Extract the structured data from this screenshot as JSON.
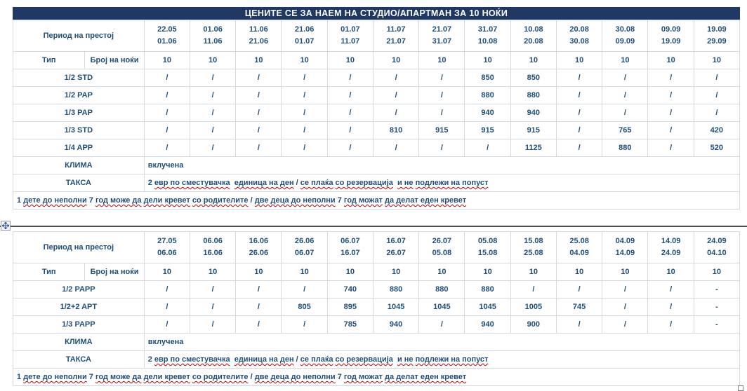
{
  "page": {
    "title": "ЦЕНИТЕ СЕ ЗА НАЕМ НА СТУДИО/АПАРТМАН ЗА 10 НОЌИ"
  },
  "labels": {
    "period": "Период на престој",
    "type": "Тип",
    "nights": "Број на ноќи",
    "klima": "КЛИМА",
    "klima_value": "вклучена",
    "taksa": "ТАКСА"
  },
  "taksa_segments": [
    {
      "t": "2 ",
      "m": false
    },
    {
      "t": "евр по сместувачка",
      "m": true
    },
    {
      "t": "  ",
      "m": false
    },
    {
      "t": "единица на ден",
      "m": true
    },
    {
      "t": " / ",
      "m": false
    },
    {
      "t": "се плаќа",
      "m": true
    },
    {
      "t": " ",
      "m": false
    },
    {
      "t": "со резервација",
      "m": true
    },
    {
      "t": "  ",
      "m": false
    },
    {
      "t": "и не",
      "m": true
    },
    {
      "t": " ",
      "m": false
    },
    {
      "t": "подлежи на попуст",
      "m": true
    }
  ],
  "footer_segments": [
    {
      "t": "1 ",
      "m": false
    },
    {
      "t": "дете до неполни",
      "m": true
    },
    {
      "t": " 7 ",
      "m": false
    },
    {
      "t": "год може да",
      "m": true
    },
    {
      "t": " ",
      "m": false
    },
    {
      "t": "дели кревет",
      "m": true
    },
    {
      "t": " ",
      "m": false
    },
    {
      "t": "со родителите",
      "m": true
    },
    {
      "t": " / ",
      "m": false
    },
    {
      "t": "две деца до неполни",
      "m": true
    },
    {
      "t": " 7 ",
      "m": false
    },
    {
      "t": "год можат",
      "m": true
    },
    {
      "t": " ",
      "m": false
    },
    {
      "t": "да делат еден кревет",
      "m": true
    }
  ],
  "tables": [
    {
      "has_title": true,
      "periods": [
        [
          "22.05",
          "01.06"
        ],
        [
          "01.06",
          "11.06"
        ],
        [
          "11.06",
          "21.06"
        ],
        [
          "21.06",
          "01.07"
        ],
        [
          "01.07",
          "11.07"
        ],
        [
          "11.07",
          "21.07"
        ],
        [
          "21.07",
          "31.07"
        ],
        [
          "31.07",
          "10.08"
        ],
        [
          "10.08",
          "20.08"
        ],
        [
          "20.08",
          "30.08"
        ],
        [
          "30.08",
          "09.09"
        ],
        [
          "09.09",
          "19.09"
        ],
        [
          "19.09",
          "29.09"
        ]
      ],
      "nights": [
        "10",
        "10",
        "10",
        "10",
        "10",
        "10",
        "10",
        "10",
        "10",
        "10",
        "10",
        "10",
        "10"
      ],
      "rows": [
        {
          "label": "1/2 STD",
          "values": [
            "/",
            "/",
            "/",
            "/",
            "/",
            "/",
            "/",
            "850",
            "850",
            "/",
            "/",
            "/",
            "/"
          ]
        },
        {
          "label": "1/2 PAP",
          "values": [
            "/",
            "/",
            "/",
            "/",
            "/",
            "/",
            "/",
            "880",
            "880",
            "/",
            "/",
            "/",
            "/"
          ]
        },
        {
          "label": "1/3 PAP",
          "values": [
            "/",
            "/",
            "/",
            "/",
            "/",
            "/",
            "/",
            "940",
            "940",
            "/",
            "/",
            "/",
            "/"
          ]
        },
        {
          "label": "1/3 STD",
          "values": [
            "/",
            "/",
            "/",
            "/",
            "/",
            "810",
            "915",
            "915",
            "915",
            "/",
            "765",
            "/",
            "420"
          ]
        },
        {
          "label": "1/4 APP",
          "values": [
            "/",
            "/",
            "/",
            "/",
            "/",
            "/",
            "/",
            "/",
            "1125",
            "/",
            "880",
            "/",
            "520"
          ]
        }
      ]
    },
    {
      "has_title": false,
      "periods": [
        [
          "27.05",
          "06.06"
        ],
        [
          "06.06",
          "16.06"
        ],
        [
          "16.06",
          "26.06"
        ],
        [
          "26.06",
          "06.07"
        ],
        [
          "06.07",
          "16.07"
        ],
        [
          "16.07",
          "26.07"
        ],
        [
          "26.07",
          "05.08"
        ],
        [
          "05.08",
          "15.08"
        ],
        [
          "15.08",
          "25.08"
        ],
        [
          "25.08",
          "04.09"
        ],
        [
          "04.09",
          "14.09"
        ],
        [
          "14.09",
          "24.09"
        ],
        [
          "24.09",
          "04.10"
        ]
      ],
      "nights": [
        "10",
        "10",
        "10",
        "10",
        "10",
        "10",
        "10",
        "10",
        "10",
        "10",
        "10",
        "10",
        "10"
      ],
      "rows": [
        {
          "label": "1/2 PAPP",
          "values": [
            "/",
            "/",
            "/",
            "/",
            "740",
            "880",
            "880",
            "880",
            "/",
            "/",
            "/",
            "/",
            "-"
          ]
        },
        {
          "label": "1/2+2 APT",
          "values": [
            "/",
            "/",
            "/",
            "805",
            "895",
            "1045",
            "1045",
            "1045",
            "1005",
            "745",
            "/",
            "/",
            "-"
          ]
        },
        {
          "label": "1/3 PAPP",
          "values": [
            "/",
            "/",
            "/",
            "/",
            "785",
            "940",
            "/",
            "940",
            "900",
            "/",
            "/",
            "/",
            "-"
          ]
        }
      ]
    }
  ],
  "colors": {
    "title_bg": "#1F3864",
    "title_text": "#FFFFFF",
    "cell_text": "#1F4E79",
    "border": "#D3D9E2",
    "divider": "#4D4D4D",
    "spellcheck": "#C00000"
  },
  "icons": {
    "move_handle": "table-move-icon",
    "resize_handle": "table-resize-icon"
  }
}
